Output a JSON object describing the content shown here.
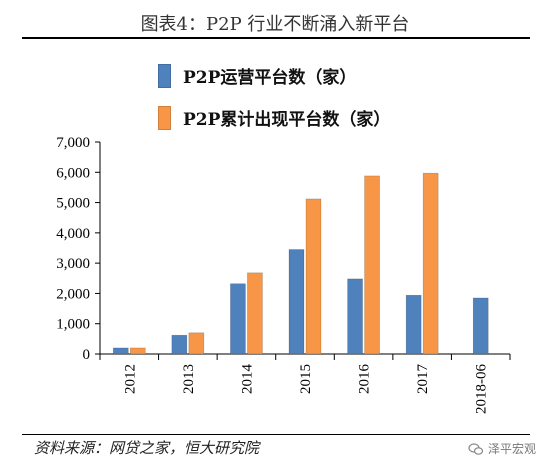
{
  "title": "图表4：P2P 行业不断涌入新平台",
  "source_note": "资料来源：网贷之家，恒大研究院",
  "watermark": "泽平宏观",
  "colors": {
    "series1": "#4f81bd",
    "series2": "#f79646"
  },
  "chart_data": {
    "type": "bar",
    "title": "图表4：P2P 行业不断涌入新平台",
    "categories": [
      "2012",
      "2013",
      "2014",
      "2015",
      "2016",
      "2017",
      "2018-06"
    ],
    "series": [
      {
        "name": "P2P运营平台数（家）",
        "values": [
          200,
          620,
          2320,
          3450,
          2480,
          1940,
          1850
        ]
      },
      {
        "name": "P2P累计出现平台数（家）",
        "values": [
          200,
          700,
          2680,
          5120,
          5880,
          5970,
          null
        ]
      }
    ],
    "yticks": [
      "0",
      "1,000",
      "2,000",
      "3,000",
      "4,000",
      "5,000",
      "6,000",
      "7,000"
    ],
    "ylim": [
      0,
      7000
    ],
    "legend": "top-left",
    "grid": false
  }
}
